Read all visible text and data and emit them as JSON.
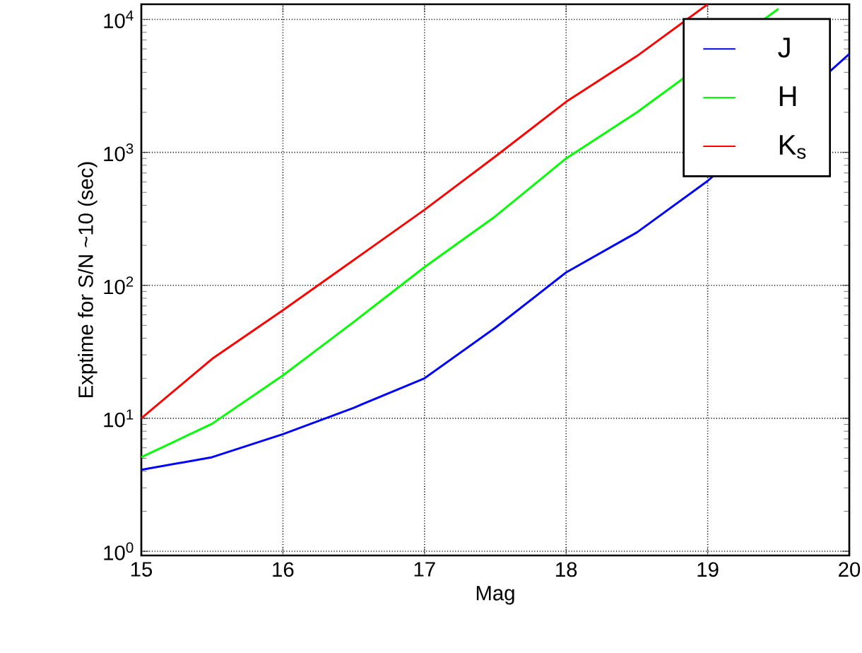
{
  "chart_data": {
    "type": "line",
    "xlabel": "Mag",
    "ylabel": "Exptime for S/N ~10 (sec)",
    "series": [
      {
        "name": "J",
        "color": "#0000ff",
        "x": [
          15,
          15.5,
          16,
          16.5,
          17,
          17.5,
          18,
          18.5,
          19,
          20
        ],
        "values": [
          4.1,
          5.1,
          7.6,
          12,
          20,
          48,
          125,
          250,
          610,
          5500
        ]
      },
      {
        "name": "H",
        "color": "#00ff00",
        "x": [
          15,
          15.5,
          16,
          16.5,
          17,
          17.5,
          18,
          18.5,
          19.5
        ],
        "values": [
          5.1,
          9.1,
          21,
          53,
          137,
          330,
          900,
          2000,
          12000
        ]
      },
      {
        "name": "K$_{s}$",
        "color": "#ff0000",
        "x": [
          15,
          15.5,
          16,
          16.5,
          17,
          17.5,
          18,
          18.5,
          19
        ],
        "values": [
          10,
          28,
          65,
          155,
          370,
          930,
          2400,
          5300,
          13000
        ]
      }
    ],
    "log": "y",
    "xlim": [
      15,
      20
    ],
    "ylim": [
      0.93,
      13000
    ],
    "xticks": [
      15,
      16,
      17,
      18,
      19,
      20
    ],
    "yticks": [
      {
        "value": 1,
        "label": "10$^{0}$"
      },
      {
        "value": 10,
        "label": "10$^{1}$"
      },
      {
        "value": 100,
        "label": "10$^{2}$"
      },
      {
        "value": 1000,
        "label": "10$^{3}$"
      },
      {
        "value": 10000,
        "label": "10$^{4}$"
      }
    ],
    "grid": true,
    "legend": "top right",
    "line_style": "solid",
    "marker": "none"
  }
}
